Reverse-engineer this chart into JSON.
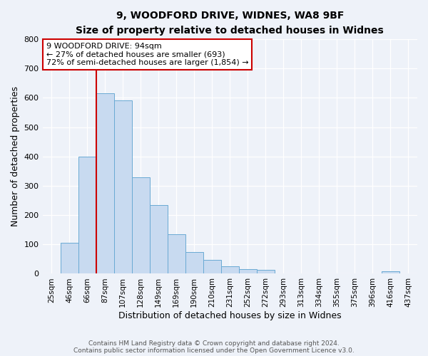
{
  "title": "9, WOODFORD DRIVE, WIDNES, WA8 9BF",
  "subtitle": "Size of property relative to detached houses in Widnes",
  "xlabel": "Distribution of detached houses by size in Widnes",
  "ylabel": "Number of detached properties",
  "bin_labels": [
    "25sqm",
    "46sqm",
    "66sqm",
    "87sqm",
    "107sqm",
    "128sqm",
    "149sqm",
    "169sqm",
    "190sqm",
    "210sqm",
    "231sqm",
    "252sqm",
    "272sqm",
    "293sqm",
    "313sqm",
    "334sqm",
    "355sqm",
    "375sqm",
    "396sqm",
    "416sqm",
    "437sqm"
  ],
  "bar_heights": [
    0,
    105,
    400,
    615,
    590,
    330,
    235,
    135,
    75,
    48,
    25,
    15,
    13,
    0,
    0,
    0,
    0,
    0,
    0,
    8,
    0
  ],
  "bar_color": "#c8daf0",
  "bar_edge_color": "#6aaad4",
  "vline_bin_index": 3,
  "annotation_text_line1": "9 WOODFORD DRIVE: 94sqm",
  "annotation_text_line2": "← 27% of detached houses are smaller (693)",
  "annotation_text_line3": "72% of semi-detached houses are larger (1,854) →",
  "annotation_box_facecolor": "#ffffff",
  "annotation_box_edgecolor": "#cc0000",
  "vline_color": "#cc0000",
  "ylim": [
    0,
    800
  ],
  "yticks": [
    0,
    100,
    200,
    300,
    400,
    500,
    600,
    700,
    800
  ],
  "background_color": "#eef2f9",
  "grid_color": "#ffffff",
  "footer_line1": "Contains HM Land Registry data © Crown copyright and database right 2024.",
  "footer_line2": "Contains public sector information licensed under the Open Government Licence v3.0."
}
